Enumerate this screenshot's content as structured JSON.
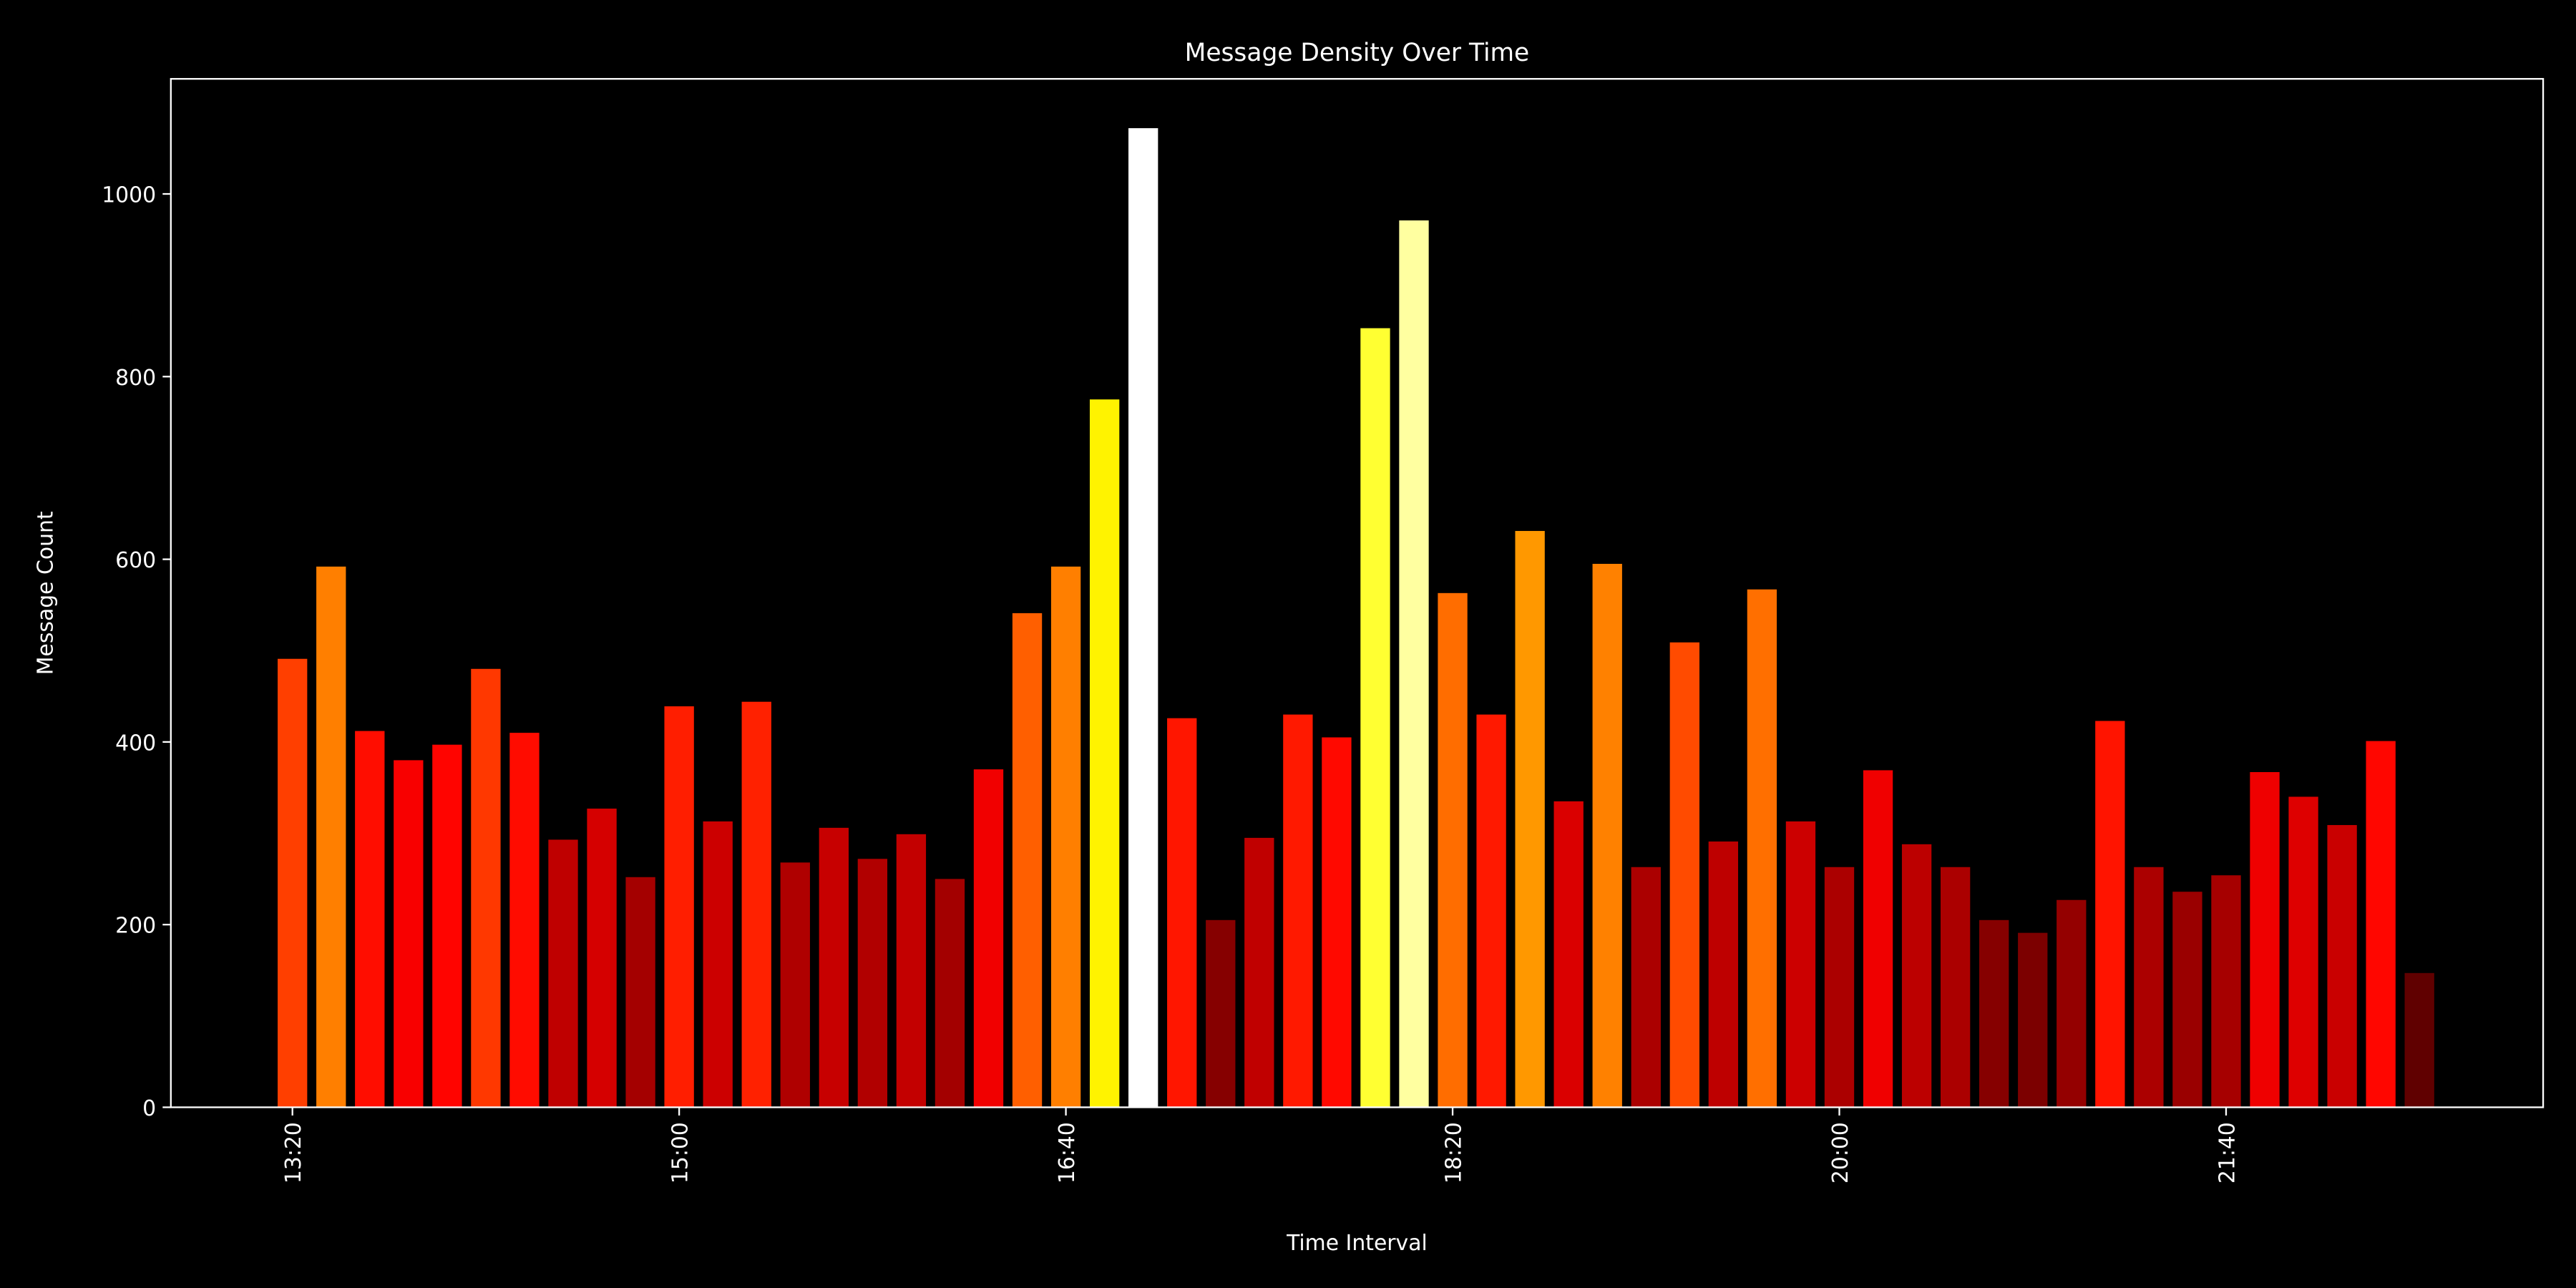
{
  "chart_data": {
    "type": "bar",
    "title": "Message Density Over Time",
    "x_label": "Time Interval",
    "y_label": "Message Count",
    "categories": [
      "13:20",
      null,
      null,
      null,
      null,
      null,
      null,
      null,
      null,
      null,
      "15:00",
      null,
      null,
      null,
      null,
      null,
      null,
      null,
      null,
      null,
      "16:40",
      null,
      null,
      null,
      null,
      null,
      null,
      null,
      null,
      null,
      "18:20",
      null,
      null,
      null,
      null,
      null,
      null,
      null,
      null,
      null,
      "20:00",
      null,
      null,
      null,
      null,
      null,
      null,
      null,
      null,
      null,
      "21:40",
      null,
      null,
      null,
      null,
      null
    ],
    "values": [
      491,
      592,
      412,
      380,
      397,
      480,
      410,
      293,
      327,
      252,
      439,
      313,
      444,
      268,
      306,
      272,
      299,
      250,
      370,
      541,
      592,
      775,
      1072,
      426,
      205,
      295,
      430,
      405,
      853,
      971,
      563,
      430,
      631,
      335,
      595,
      263,
      509,
      291,
      567,
      313,
      263,
      369,
      288,
      263,
      205,
      191,
      227,
      423,
      263,
      236,
      254,
      367,
      340,
      309,
      401,
      147
    ],
    "colormap": "hot",
    "background": "#000000",
    "ylim": [
      0,
      1126
    ],
    "yticks": [
      0,
      200,
      400,
      600,
      800,
      1000
    ]
  }
}
